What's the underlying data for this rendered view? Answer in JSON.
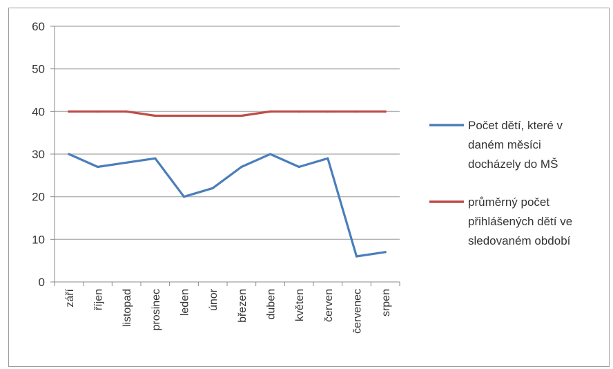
{
  "chart_data": {
    "type": "line",
    "title": "",
    "xlabel": "",
    "ylabel": "",
    "ylim": [
      0,
      60
    ],
    "yticks": [
      0,
      10,
      20,
      30,
      40,
      50,
      60
    ],
    "grid": true,
    "legend_position": "right",
    "categories": [
      "září",
      "říjen",
      "listopad",
      "prosinec",
      "leden",
      "únor",
      "březen",
      "duben",
      "květen",
      "červen",
      "červenec",
      "srpen"
    ],
    "series": [
      {
        "name": "Počet dětí, které v daném měsíci docházely do MŠ",
        "legend_lines": [
          "Počet dětí, které v",
          "daném měsíci",
          "docházely do MŠ"
        ],
        "color": "#4a7ebb",
        "values": [
          30,
          27,
          28,
          29,
          20,
          22,
          27,
          30,
          27,
          29,
          6,
          7
        ]
      },
      {
        "name": "průměrný počet přihlášených dětí ve sledovaném období",
        "legend_lines": [
          "průměrný počet",
          "přihlášených dětí ve",
          "sledovaném období"
        ],
        "color": "#be4b48",
        "values": [
          40,
          40,
          40,
          39,
          39,
          39,
          39,
          40,
          40,
          40,
          40,
          40
        ]
      }
    ]
  }
}
